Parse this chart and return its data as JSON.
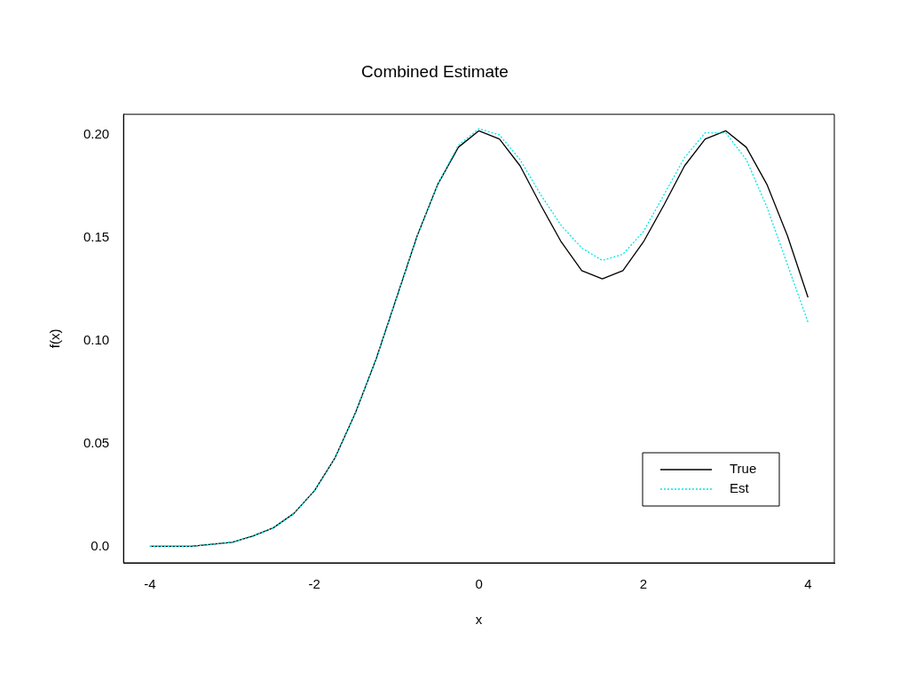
{
  "chart_data": {
    "type": "line",
    "title": "Combined Estimate",
    "xlabel": "x",
    "ylabel": "f(x)",
    "x": [
      -4,
      -3.75,
      -3.5,
      -3.25,
      -3,
      -2.75,
      -2.5,
      -2.25,
      -2,
      -1.75,
      -1.5,
      -1.25,
      -1,
      -0.75,
      -0.5,
      -0.25,
      0,
      0.25,
      0.5,
      0.75,
      1,
      1.25,
      1.5,
      1.75,
      2,
      2.25,
      2.5,
      2.75,
      3,
      3.25,
      3.5,
      3.75,
      4
    ],
    "series": [
      {
        "name": "True",
        "color": "#000000",
        "line_style": "solid",
        "values": [
          0.0,
          0.0,
          0.0,
          0.001,
          0.002,
          0.005,
          0.009,
          0.016,
          0.027,
          0.043,
          0.065,
          0.091,
          0.121,
          0.151,
          0.176,
          0.194,
          0.202,
          0.198,
          0.185,
          0.166,
          0.148,
          0.134,
          0.13,
          0.134,
          0.148,
          0.166,
          0.185,
          0.198,
          0.202,
          0.194,
          0.176,
          0.151,
          0.121
        ]
      },
      {
        "name": "Est",
        "color": "#00e5e5",
        "line_style": "dotted",
        "values": [
          0.0,
          0.0,
          0.0,
          0.001,
          0.002,
          0.005,
          0.009,
          0.016,
          0.027,
          0.043,
          0.065,
          0.091,
          0.121,
          0.151,
          0.176,
          0.195,
          0.203,
          0.2,
          0.188,
          0.171,
          0.156,
          0.145,
          0.139,
          0.142,
          0.153,
          0.171,
          0.189,
          0.201,
          0.201,
          0.188,
          0.165,
          0.137,
          0.109
        ]
      }
    ],
    "xlim": [
      -4.32,
      4.32
    ],
    "xticks": [
      -4,
      -2,
      0,
      2,
      4
    ],
    "ylim": [
      -0.008,
      0.21
    ],
    "yticks": [
      {
        "value": 0,
        "label": "0.0"
      },
      0.05,
      {
        "value": 0.1,
        "label": "0.10"
      },
      0.15,
      {
        "value": 0.2,
        "label": "0.20"
      }
    ],
    "grid": false,
    "legend": "bottom right",
    "marker": "none"
  }
}
